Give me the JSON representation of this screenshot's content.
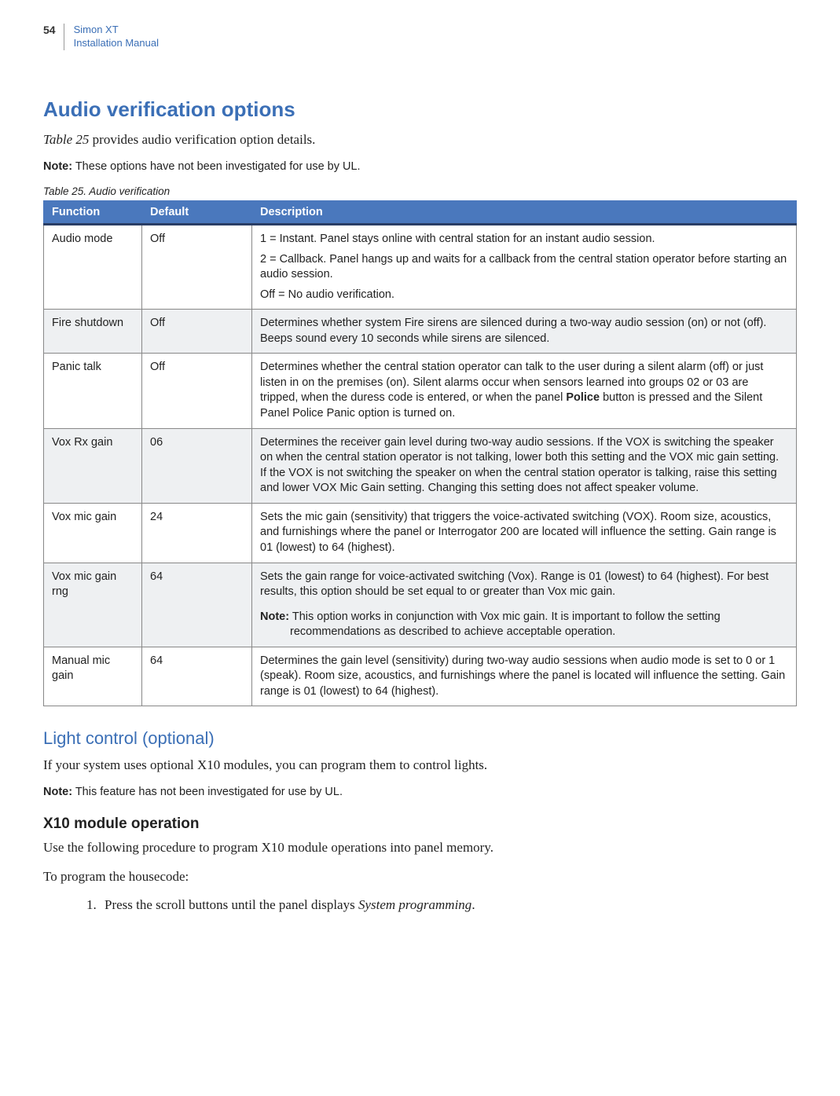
{
  "header": {
    "page_number": "54",
    "title_line1": "Simon XT",
    "title_line2": "Installation Manual"
  },
  "section1": {
    "heading": "Audio verification options",
    "intro_prefix_italic": "Table 25",
    "intro_rest": " provides audio verification option details.",
    "note_label": "Note:",
    "note_text": "  These options have not been investigated for use by UL.",
    "table_caption": "Table 25.    Audio verification"
  },
  "table": {
    "headers": {
      "c1": "Function",
      "c2": "Default",
      "c3": "Description"
    },
    "rows": [
      {
        "func": "Audio mode",
        "def": "Off",
        "desc": [
          "1 = Instant.  Panel stays online with central station for an instant audio session.",
          "2 = Callback.  Panel hangs up and waits for a callback from the central station operator before starting an audio session.",
          "Off = No audio verification."
        ]
      },
      {
        "func": "Fire shutdown",
        "def": "Off",
        "desc": [
          "Determines whether system Fire sirens are silenced during a two-way audio session (on) or not (off). Beeps sound every 10 seconds while sirens are silenced."
        ]
      },
      {
        "func": "Panic talk",
        "def": "Off",
        "desc_html": "Determines whether the central station operator can talk to the user during a silent alarm (off) or just listen in on the premises (on).  Silent alarms occur when sensors learned into groups 02 or 03 are tripped, when the duress code is entered, or when the panel <b>Police</b> button is pressed and the Silent Panel Police Panic option is turned on."
      },
      {
        "func": "Vox Rx gain",
        "def": "06",
        "desc": [
          "Determines the receiver gain level during two-way audio sessions. If the VOX is switching the speaker on when the central station operator is not talking, lower both this setting and the VOX mic gain setting. If the VOX is not switching the speaker on when the central station operator is talking, raise this setting and lower VOX Mic Gain setting. Changing this setting does not affect speaker  volume."
        ]
      },
      {
        "func": "Vox mic gain",
        "def": "24",
        "desc": [
          "Sets the mic gain (sensitivity) that triggers the voice-activated switching (VOX). Room size, acoustics, and furnishings where the panel or Interrogator 200 are located will influence the setting. Gain range is 01 (lowest) to 64 (highest)."
        ]
      },
      {
        "func": "Vox mic gain rng",
        "def": "64",
        "desc": [
          "Sets the gain range for voice-activated switching (Vox). Range is 01 (lowest) to 64 (highest).  For best results, this option should be set equal to or greater than Vox mic gain."
        ],
        "note_label": "Note:",
        "note_text": "This option works in conjunction with Vox mic gain.  It is important to follow the setting recommendations as described to achieve acceptable operation."
      },
      {
        "func": "Manual mic gain",
        "def": "64",
        "desc": [
          "Determines the gain level (sensitivity) during two-way audio sessions when audio mode is set to 0 or 1 (speak).  Room size, acoustics, and furnishings where the panel is located will influence the setting. Gain range is 01 (lowest) to 64 (highest)."
        ]
      }
    ]
  },
  "section2": {
    "heading": "Light control (optional)",
    "intro": "If your system uses optional X10 modules, you can program them to control lights.",
    "note_label": "Note:",
    "note_text": "  This feature has not been investigated for use by UL.",
    "h3": "X10 module operation",
    "p1": "Use the following procedure to program X10 module operations into panel memory.",
    "p2": "To program the housecode:",
    "step1_prefix": "Press the scroll buttons until the panel displays ",
    "step1_italic": "System programming",
    "step1_suffix": "."
  },
  "colors": {
    "accent_blue": "#3b6fb6",
    "table_header_bg": "#4a78bd",
    "table_header_border_bottom": "#2a3e66",
    "alt_row_bg": "#eef0f2"
  }
}
